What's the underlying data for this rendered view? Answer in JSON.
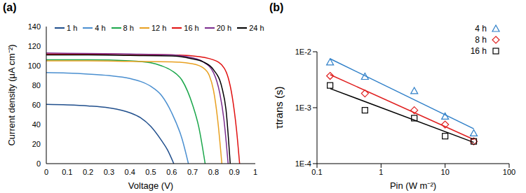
{
  "chart_data": [
    {
      "type": "line",
      "panel": "(a)",
      "xlabel": "Voltage (V)",
      "ylabel": "Current density (μA cm⁻²)",
      "xlim": [
        0,
        1
      ],
      "xticks": [
        0,
        0.1,
        0.2,
        0.3,
        0.4,
        0.5,
        0.6,
        0.7,
        0.8,
        0.9,
        1
      ],
      "ylim": [
        0,
        140
      ],
      "yticks": [
        0,
        20,
        40,
        60,
        80,
        100,
        120,
        140
      ],
      "grid": false,
      "legend": "top",
      "series": [
        {
          "name": "1 h",
          "color": "#1f4e8c",
          "x": [
            0,
            0.1,
            0.2,
            0.3,
            0.4,
            0.45,
            0.5,
            0.55,
            0.58,
            0.61
          ],
          "values": [
            60.5,
            60,
            59,
            57,
            52,
            47,
            38,
            24,
            14,
            0
          ]
        },
        {
          "name": "4 h",
          "color": "#4a8fd0",
          "x": [
            0,
            0.1,
            0.2,
            0.3,
            0.4,
            0.45,
            0.5,
            0.55,
            0.6,
            0.65,
            0.68
          ],
          "values": [
            93,
            92.5,
            91.5,
            90,
            87,
            84,
            79,
            70,
            52,
            25,
            0
          ]
        },
        {
          "name": "8 h",
          "color": "#1aa64a",
          "x": [
            0,
            0.2,
            0.4,
            0.5,
            0.55,
            0.6,
            0.65,
            0.7,
            0.73,
            0.76
          ],
          "values": [
            106,
            106,
            105,
            103,
            100,
            95,
            85,
            60,
            37,
            0
          ]
        },
        {
          "name": "12 h",
          "color": "#e8a020",
          "x": [
            0,
            0.2,
            0.4,
            0.6,
            0.7,
            0.75,
            0.78,
            0.8,
            0.82,
            0.84
          ],
          "values": [
            105,
            105,
            104.5,
            104,
            102,
            98,
            90,
            75,
            45,
            0
          ]
        },
        {
          "name": "16 h",
          "color": "#e01010",
          "x": [
            0,
            0.2,
            0.4,
            0.6,
            0.7,
            0.8,
            0.85,
            0.87,
            0.89,
            0.91,
            0.925
          ],
          "values": [
            112,
            112,
            111.5,
            111,
            110,
            106,
            98,
            88,
            68,
            35,
            0
          ]
        },
        {
          "name": "20 h",
          "color": "#7b2c8e",
          "x": [
            0,
            0.2,
            0.4,
            0.6,
            0.7,
            0.75,
            0.8,
            0.83,
            0.85,
            0.87
          ],
          "values": [
            113,
            112.5,
            112,
            111,
            108,
            104,
            93,
            72,
            45,
            0
          ]
        },
        {
          "name": "24 h",
          "color": "#000000",
          "x": [
            0,
            0.2,
            0.4,
            0.6,
            0.7,
            0.75,
            0.8,
            0.84,
            0.86,
            0.88
          ],
          "values": [
            111,
            111,
            110.5,
            110,
            107,
            104,
            96,
            78,
            55,
            0
          ]
        }
      ]
    },
    {
      "type": "scatter",
      "panel": "(b)",
      "xlabel": "Pin (W m⁻²)",
      "ylabel": "τtrans (s)",
      "log": true,
      "grid": false,
      "legend": "upper right",
      "xlim": [
        0.1,
        100
      ],
      "xticks": [
        0.1,
        1,
        10,
        100
      ],
      "ylim": [
        0.0001,
        0.01
      ],
      "yticks": [
        {
          "value": 0.0001,
          "label": "1E-4"
        },
        {
          "value": 0.001,
          "label": "1E-3"
        },
        {
          "value": 0.01,
          "label": "1E-2"
        }
      ],
      "series": [
        {
          "name": "4 h",
          "color": "#2e7fc8",
          "marker": "triangle",
          "x": [
            0.16,
            0.56,
            3.3,
            10,
            28
          ],
          "values": [
            0.0065,
            0.0036,
            0.002,
            0.0007,
            0.00035
          ],
          "fit": {
            "x": [
              0.16,
              28
            ],
            "values": [
              0.0075,
              0.00042
            ]
          }
        },
        {
          "name": "8 h",
          "color": "#e02020",
          "marker": "diamond",
          "x": [
            0.16,
            0.56,
            3.3,
            10,
            28
          ],
          "values": [
            0.0037,
            0.0018,
            0.0009,
            0.0005,
            0.00025
          ],
          "fit": {
            "x": [
              0.16,
              28
            ],
            "values": [
              0.0039,
              0.00027
            ]
          }
        },
        {
          "name": "16 h",
          "color": "#000000",
          "marker": "square",
          "x": [
            0.16,
            0.56,
            3.3,
            10,
            28
          ],
          "values": [
            0.0025,
            0.0009,
            0.00065,
            0.00031,
            0.00025
          ],
          "fit": {
            "x": [
              0.16,
              28
            ],
            "values": [
              0.0022,
              0.00024
            ]
          }
        }
      ]
    }
  ]
}
